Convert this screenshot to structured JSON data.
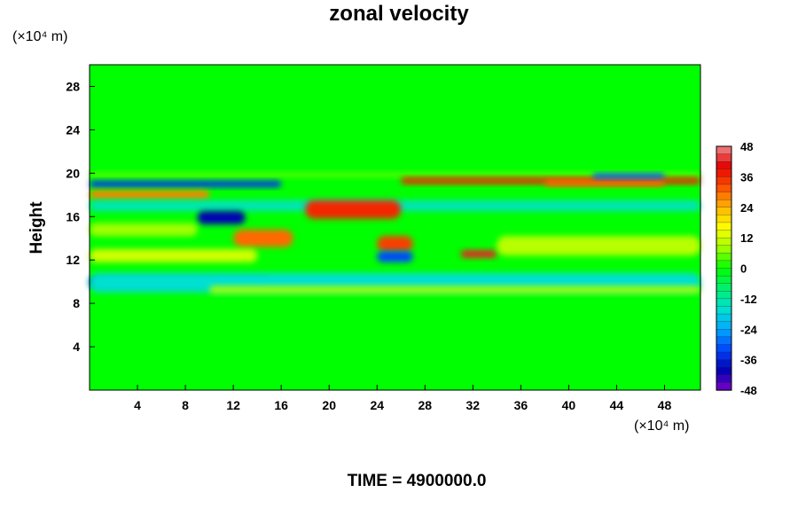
{
  "chart_data": {
    "type": "heatmap",
    "title": "zonal velocity",
    "ylabel": "Height",
    "xlabel": "",
    "x_unit_label": "(×10⁴ m)",
    "y_unit_label": "(×10⁴ m)",
    "footer": "TIME = 4900000.0",
    "xlim": [
      0,
      51
    ],
    "ylim": [
      0,
      30
    ],
    "x_ticks": [
      4,
      8,
      12,
      16,
      20,
      24,
      28,
      32,
      36,
      40,
      44,
      48
    ],
    "y_ticks": [
      4,
      8,
      12,
      16,
      20,
      24,
      28
    ],
    "colorbar": {
      "range": [
        -48,
        48
      ],
      "ticks": [
        48,
        36,
        24,
        12,
        0,
        -12,
        -24,
        -36,
        -48
      ]
    },
    "background_value": 0,
    "features": [
      {
        "x": [
          0,
          51
        ],
        "y": [
          19.6,
          20.1
        ],
        "value": 4
      },
      {
        "x": [
          0,
          16
        ],
        "y": [
          18.7,
          19.3
        ],
        "value": -34
      },
      {
        "x": [
          26,
          51
        ],
        "y": [
          19.0,
          19.6
        ],
        "value": 36
      },
      {
        "x": [
          38,
          48
        ],
        "y": [
          18.8,
          19.4
        ],
        "value": 30
      },
      {
        "x": [
          42,
          48
        ],
        "y": [
          19.5,
          20.0
        ],
        "value": -30
      },
      {
        "x": [
          0,
          10
        ],
        "y": [
          17.6,
          18.4
        ],
        "value": 28
      },
      {
        "x": [
          0,
          51
        ],
        "y": [
          16.5,
          17.5
        ],
        "value": -14
      },
      {
        "x": [
          18,
          26
        ],
        "y": [
          15.8,
          17.5
        ],
        "value": 36
      },
      {
        "x": [
          9,
          13
        ],
        "y": [
          15.3,
          16.5
        ],
        "value": -40
      },
      {
        "x": [
          0,
          9
        ],
        "y": [
          14.2,
          15.4
        ],
        "value": 8
      },
      {
        "x": [
          12,
          17
        ],
        "y": [
          13.2,
          14.8
        ],
        "value": 30
      },
      {
        "x": [
          24,
          27
        ],
        "y": [
          12.8,
          14.2
        ],
        "value": 34
      },
      {
        "x": [
          24,
          27
        ],
        "y": [
          11.8,
          12.8
        ],
        "value": -32
      },
      {
        "x": [
          31,
          34
        ],
        "y": [
          12.2,
          12.9
        ],
        "value": 42
      },
      {
        "x": [
          34,
          51
        ],
        "y": [
          12.4,
          14.2
        ],
        "value": 10
      },
      {
        "x": [
          0,
          14
        ],
        "y": [
          11.8,
          13.0
        ],
        "value": 12
      },
      {
        "x": [
          0,
          15
        ],
        "y": [
          9.6,
          10.3
        ],
        "value": -36
      },
      {
        "x": [
          0,
          51
        ],
        "y": [
          9.0,
          10.8
        ],
        "value": -16
      },
      {
        "x": [
          10,
          51
        ],
        "y": [
          8.9,
          9.6
        ],
        "value": 8
      }
    ]
  }
}
